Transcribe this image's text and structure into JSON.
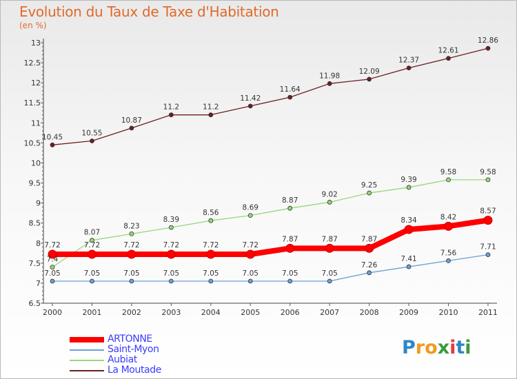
{
  "title": "Evolution du Taux de Taxe d'Habitation",
  "unit": "(en %)",
  "brand": {
    "letters": [
      "P",
      "r",
      "o",
      "x",
      "i",
      "t",
      "i"
    ],
    "colors": [
      "#2f86c8",
      "#f39a1f",
      "#f39a1f",
      "#3a9a3a",
      "#e23b3b",
      "#2f86c8",
      "#3a9a3a"
    ]
  },
  "chart_data": {
    "type": "line",
    "x": [
      "2000",
      "2001",
      "2002",
      "2003",
      "2004",
      "2005",
      "2006",
      "2007",
      "2008",
      "2009",
      "2010",
      "2011"
    ],
    "ylim": [
      6.5,
      13
    ],
    "yticks": [
      "6.5",
      "7",
      "7.5",
      "8",
      "8.5",
      "9",
      "9.5",
      "10",
      "10.5",
      "11",
      "11.5",
      "12",
      "12.5",
      "13"
    ],
    "grid": false,
    "legend_position": "bottom-left",
    "series": [
      {
        "name": "La Moutade",
        "color": "#6b1e22",
        "values": [
          10.45,
          10.55,
          10.87,
          11.2,
          11.2,
          11.42,
          11.64,
          11.98,
          12.09,
          12.37,
          12.61,
          12.86
        ],
        "labels": [
          "10.45",
          "10.55",
          "10.87",
          "11.2",
          "11.2",
          "11.42",
          "11.64",
          "11.98",
          "12.09",
          "12.37",
          "12.61",
          "12.86"
        ]
      },
      {
        "name": "Aubiat",
        "color": "#97d77a",
        "values": [
          7.4,
          8.07,
          8.23,
          8.39,
          8.56,
          8.69,
          8.87,
          9.02,
          9.25,
          9.39,
          9.58,
          9.58
        ],
        "labels": [
          "7.4",
          "8.07",
          "8.23",
          "8.39",
          "8.56",
          "8.69",
          "8.87",
          "9.02",
          "9.25",
          "9.39",
          "9.58",
          "9.58"
        ]
      },
      {
        "name": "Saint-Myon",
        "color": "#6a9fd6",
        "values": [
          7.05,
          7.05,
          7.05,
          7.05,
          7.05,
          7.05,
          7.05,
          7.05,
          7.26,
          7.41,
          7.56,
          7.71
        ],
        "labels": [
          "7.05",
          "7.05",
          "7.05",
          "7.05",
          "7.05",
          "7.05",
          "7.05",
          "7.05",
          "7.26",
          "7.41",
          "7.56",
          "7.71"
        ]
      },
      {
        "name": "ARTONNE",
        "color": "#ff0000",
        "values": [
          7.72,
          7.72,
          7.72,
          7.72,
          7.72,
          7.72,
          7.87,
          7.87,
          7.87,
          8.34,
          8.42,
          8.57
        ],
        "labels": [
          "7.72",
          "7.72",
          "7.72",
          "7.72",
          "7.72",
          "7.72",
          "7.87",
          "7.87",
          "7.87",
          "8.34",
          "8.42",
          "8.57"
        ]
      }
    ],
    "legend": [
      {
        "name": "ARTONNE",
        "color": "#ff0000"
      },
      {
        "name": "Saint-Myon",
        "color": "#6a9fd6"
      },
      {
        "name": "Aubiat",
        "color": "#97d77a"
      },
      {
        "name": "La Moutade",
        "color": "#6b1e22"
      }
    ]
  }
}
